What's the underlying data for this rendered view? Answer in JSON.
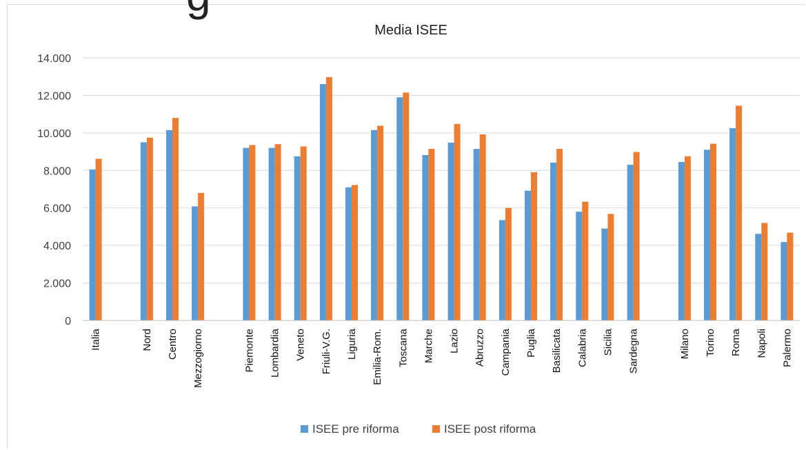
{
  "chart_data": {
    "type": "bar",
    "title": "Media ISEE",
    "xlabel": "",
    "ylabel": "",
    "ylim": [
      0,
      14000
    ],
    "y_ticks": [
      "0",
      "2.000",
      "4.000",
      "6.000",
      "8.000",
      "10.000",
      "12.000",
      "14.000"
    ],
    "grid": true,
    "legend_position": "bottom",
    "categories": [
      "Italia",
      "",
      "Nord",
      "Centro",
      "Mezzogiorno",
      "",
      "Piemonte",
      "Lombardia",
      "Veneto",
      "Friuli-V.G.",
      "Liguria",
      "Emilia-Rom.",
      "Toscana",
      "Marche",
      "Lazio",
      "Abruzzo",
      "Campania",
      "Puglia",
      "Basilicata",
      "Calabria",
      "Sicilia",
      "Sardegna",
      "",
      "Milano",
      "Torino",
      "Roma",
      "Napoli",
      "Palermo"
    ],
    "series": [
      {
        "name": "ISEE pre riforma",
        "color": "#5b9bd5",
        "values": [
          8050,
          null,
          9500,
          10150,
          6080,
          null,
          9200,
          9200,
          8750,
          12600,
          7100,
          10150,
          11900,
          8820,
          9480,
          9150,
          5350,
          6920,
          8420,
          5800,
          4900,
          8300,
          null,
          8450,
          9100,
          10250,
          4620,
          4180
        ]
      },
      {
        "name": "ISEE post riforma",
        "color": "#ed7d31",
        "values": [
          8620,
          null,
          9750,
          10800,
          6800,
          null,
          9350,
          9400,
          9280,
          12980,
          7220,
          10380,
          12150,
          9150,
          10480,
          9920,
          6000,
          7900,
          9150,
          6330,
          5680,
          8980,
          null,
          8750,
          9420,
          11450,
          5200,
          4680
        ]
      }
    ]
  }
}
